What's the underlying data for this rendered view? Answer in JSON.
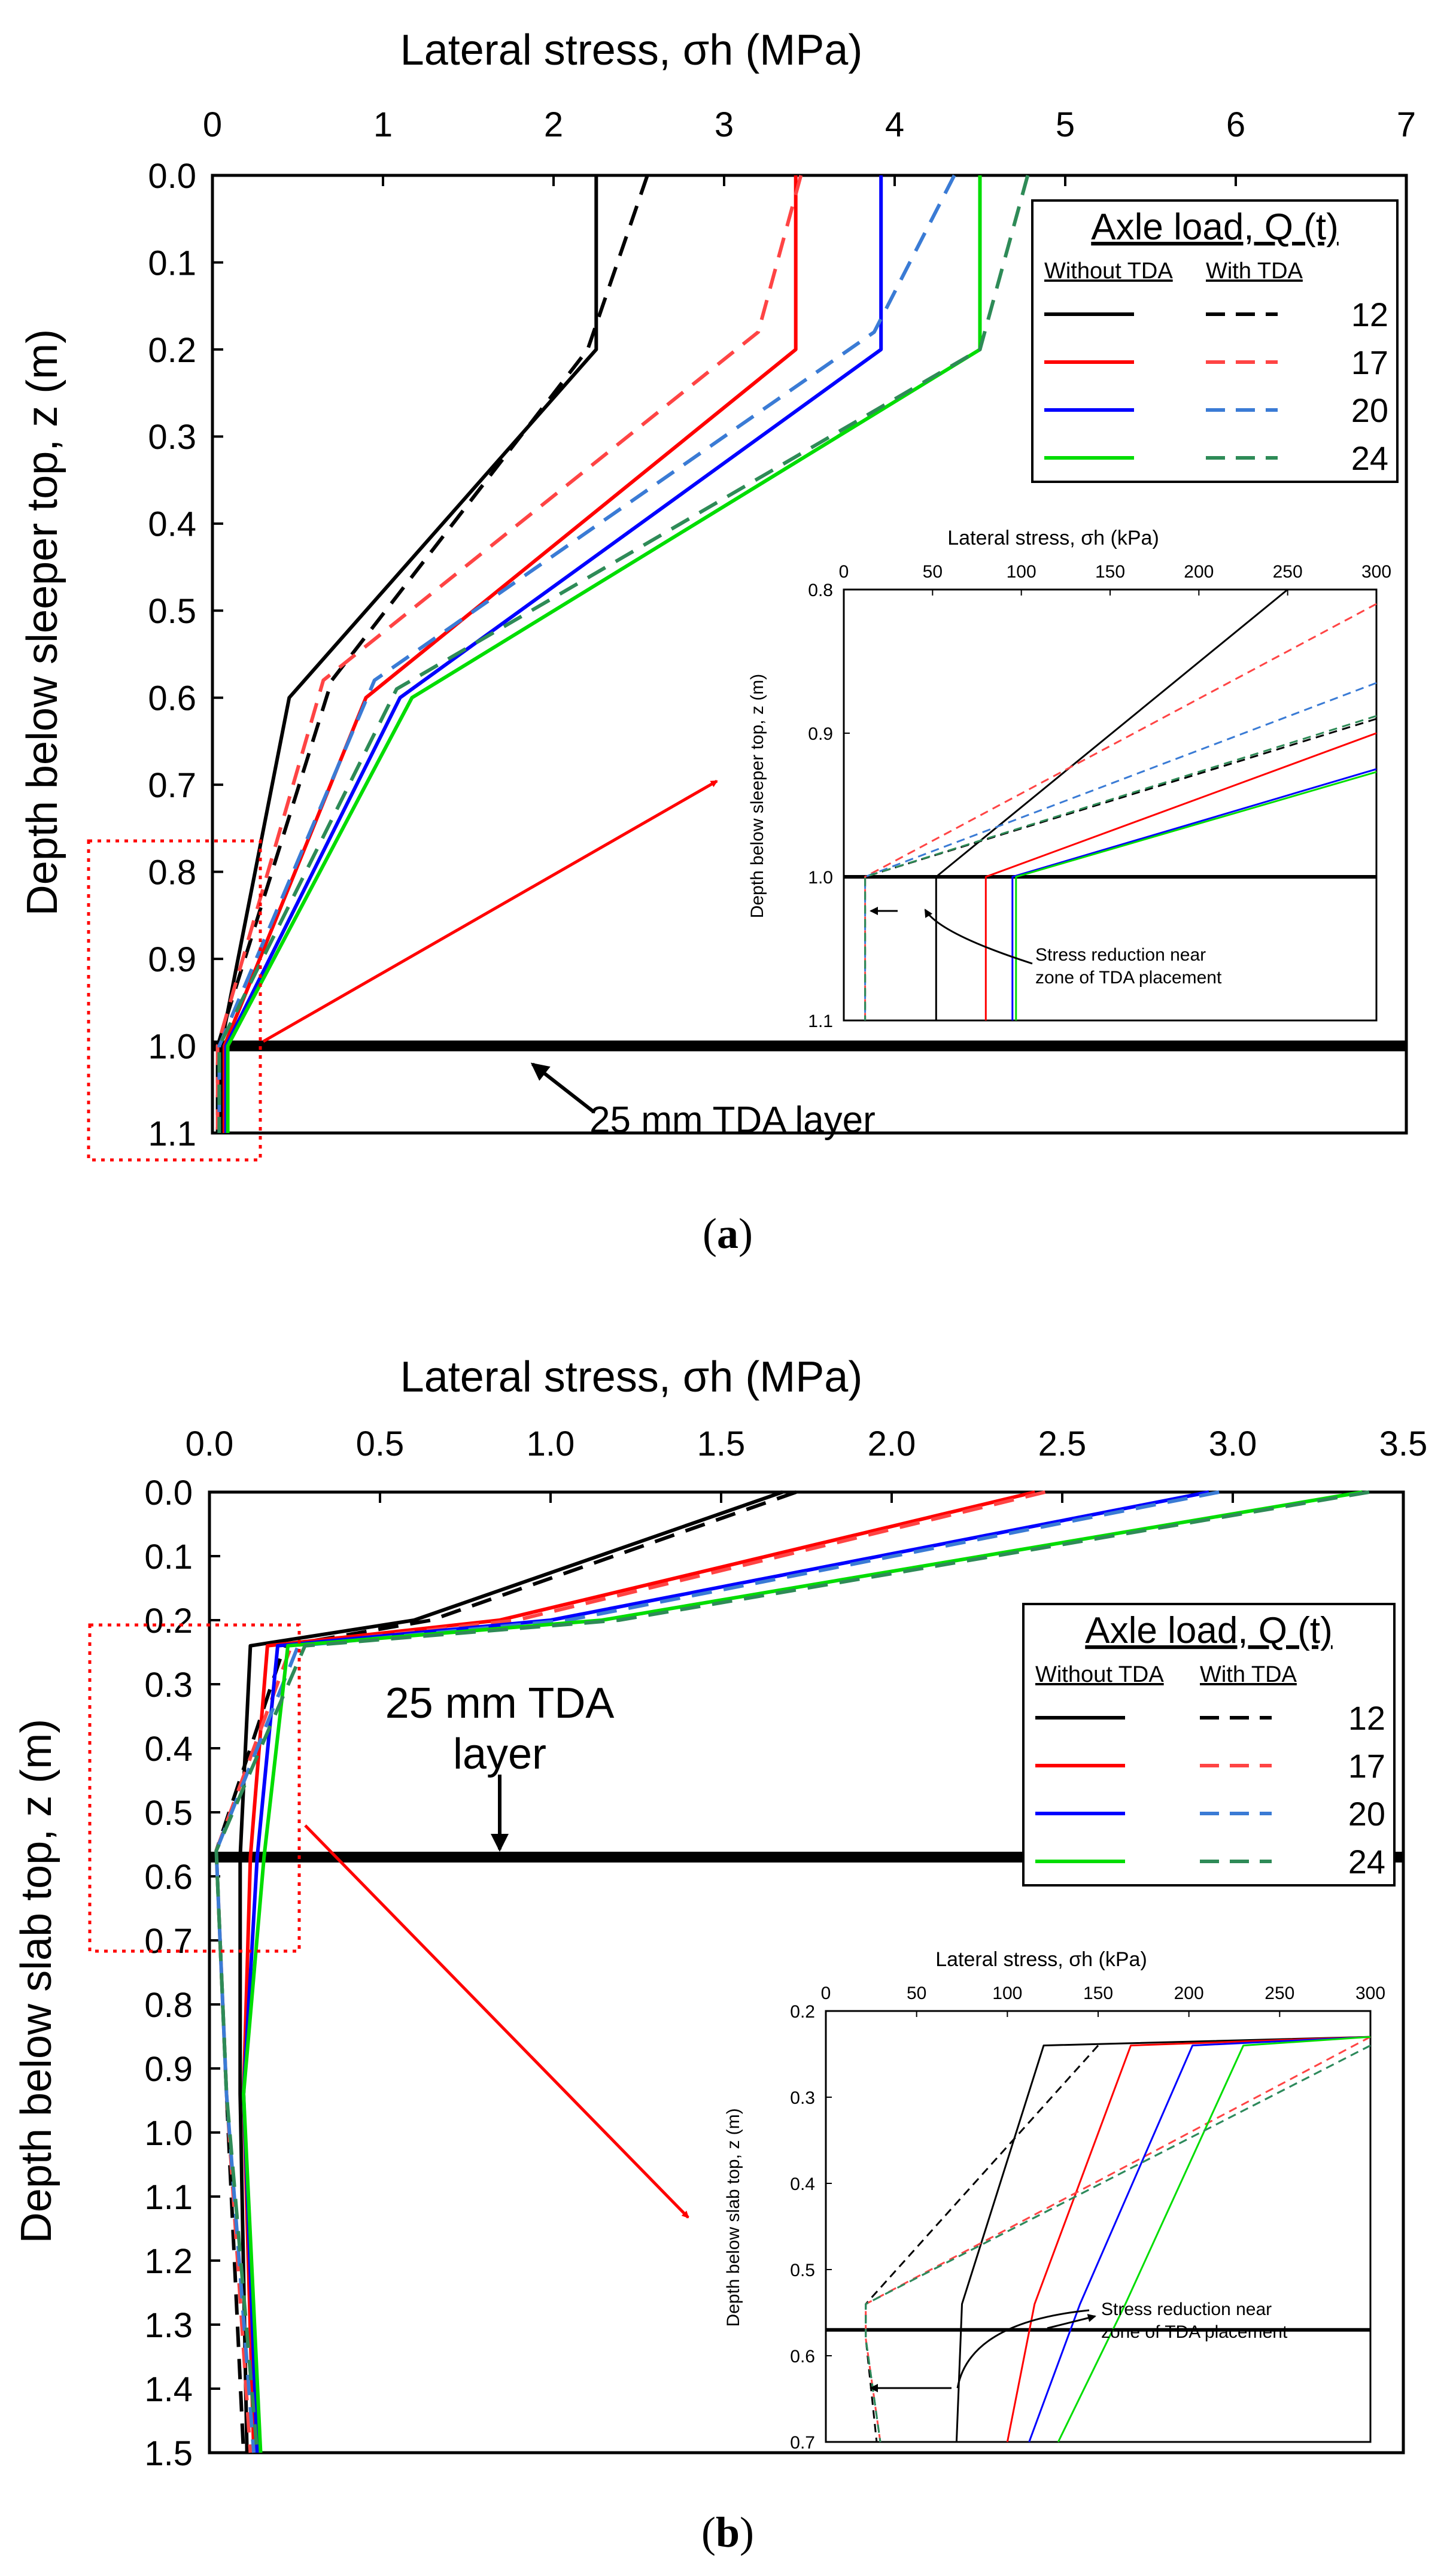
{
  "chart_data": [
    {
      "id": "a",
      "type": "line",
      "caption": "a",
      "title": "Lateral stress, σh (MPa)",
      "xlabel": "Lateral stress, σh (MPa)",
      "ylabel": "Depth below sleeper top, z (m)",
      "xlim": [
        0,
        7
      ],
      "ylim": [
        0,
        1.1
      ],
      "x_ticks": [
        "0",
        "1",
        "2",
        "3",
        "4",
        "5",
        "6",
        "7"
      ],
      "y_ticks": [
        "0.0",
        "0.1",
        "0.2",
        "0.3",
        "0.4",
        "0.5",
        "0.6",
        "0.7",
        "0.8",
        "0.9",
        "1.0",
        "1.1"
      ],
      "legend": {
        "title": "Axle load, Q (t)",
        "col1": "Without TDA",
        "col2": "With TDA",
        "entries": [
          "12",
          "17",
          "20",
          "24"
        ]
      },
      "layer": {
        "label": "25 mm TDA layer",
        "depth": 1.0
      },
      "series": [
        {
          "name": "12",
          "with_tda": false,
          "color": "#000000",
          "x": [
            2.25,
            2.25,
            0.45,
            0.05,
            0.05
          ],
          "y": [
            0,
            0.2,
            0.6,
            1.0,
            1.1
          ]
        },
        {
          "name": "12",
          "with_tda": true,
          "color": "#000000",
          "x": [
            2.55,
            2.2,
            0.7,
            0.03,
            0.03
          ],
          "y": [
            0,
            0.2,
            0.58,
            1.0,
            1.1
          ]
        },
        {
          "name": "17",
          "with_tda": false,
          "color": "#ff0000",
          "x": [
            3.42,
            3.42,
            0.9,
            0.07,
            0.07
          ],
          "y": [
            0,
            0.2,
            0.6,
            1.0,
            1.1
          ]
        },
        {
          "name": "17",
          "with_tda": true,
          "color": "#ff4444",
          "x": [
            3.45,
            3.2,
            0.65,
            0.03,
            0.03
          ],
          "y": [
            0,
            0.18,
            0.58,
            1.0,
            1.1
          ]
        },
        {
          "name": "20",
          "with_tda": false,
          "color": "#0000ff",
          "x": [
            3.92,
            3.92,
            1.1,
            0.08,
            0.08
          ],
          "y": [
            0,
            0.2,
            0.6,
            1.0,
            1.1
          ]
        },
        {
          "name": "20",
          "with_tda": true,
          "color": "#3a7bd5",
          "x": [
            4.35,
            3.88,
            0.95,
            0.04,
            0.04
          ],
          "y": [
            0,
            0.18,
            0.58,
            1.0,
            1.1
          ]
        },
        {
          "name": "24",
          "with_tda": false,
          "color": "#00dd00",
          "x": [
            4.5,
            4.5,
            1.17,
            0.09,
            0.09
          ],
          "y": [
            0,
            0.2,
            0.6,
            1.0,
            1.1
          ]
        },
        {
          "name": "24",
          "with_tda": true,
          "color": "#2e8b57",
          "x": [
            4.78,
            4.5,
            1.08,
            0.04,
            0.04
          ],
          "y": [
            0,
            0.2,
            0.59,
            1.0,
            1.1
          ]
        }
      ],
      "inset": {
        "xlabel": "Lateral stress, σh (kPa)",
        "ylabel": "Depth below sleeper top, z (m)",
        "xlim": [
          0,
          300
        ],
        "ylim": [
          0.8,
          1.1
        ],
        "x_ticks": [
          "0",
          "50",
          "100",
          "150",
          "200",
          "250",
          "300"
        ],
        "y_ticks": [
          "0.8",
          "0.9",
          "1.0",
          "1.1"
        ],
        "annotation": "Stress reduction near zone of TDA placement",
        "annotation_line1": "Stress reduction near",
        "annotation_line2": "zone of TDA placement",
        "layer_depth": 1.0,
        "series": [
          {
            "name": "12",
            "with_tda": false,
            "color": "#000000",
            "x": [
              250,
              52,
              52
            ],
            "y": [
              0.8,
              1.0,
              1.1
            ]
          },
          {
            "name": "12",
            "with_tda": true,
            "color": "#000000",
            "x": [
              300,
              12,
              12
            ],
            "y": [
              0.89,
              1.0,
              1.1
            ]
          },
          {
            "name": "17",
            "with_tda": false,
            "color": "#ff0000",
            "x": [
              300,
              80,
              80
            ],
            "y": [
              0.9,
              1.0,
              1.1
            ]
          },
          {
            "name": "17",
            "with_tda": true,
            "color": "#ff4444",
            "x": [
              300,
              12,
              12
            ],
            "y": [
              0.81,
              1.0,
              1.1
            ]
          },
          {
            "name": "20",
            "with_tda": false,
            "color": "#0000ff",
            "x": [
              300,
              95,
              95
            ],
            "y": [
              0.925,
              1.0,
              1.1
            ]
          },
          {
            "name": "20",
            "with_tda": true,
            "color": "#3a7bd5",
            "x": [
              300,
              12,
              12
            ],
            "y": [
              0.865,
              1.0,
              1.1
            ]
          },
          {
            "name": "24",
            "with_tda": false,
            "color": "#00dd00",
            "x": [
              300,
              97,
              97
            ],
            "y": [
              0.927,
              1.0,
              1.1
            ]
          },
          {
            "name": "24",
            "with_tda": true,
            "color": "#2e8b57",
            "x": [
              300,
              12,
              12
            ],
            "y": [
              0.888,
              1.0,
              1.1
            ]
          }
        ]
      }
    },
    {
      "id": "b",
      "type": "line",
      "caption": "b",
      "title": "Lateral stress, σh (MPa)",
      "xlabel": "Lateral stress, σh (MPa)",
      "ylabel": "Depth below slab top, z (m)",
      "xlim": [
        0,
        3.5
      ],
      "ylim": [
        0,
        1.5
      ],
      "x_ticks": [
        "0.0",
        "0.5",
        "1.0",
        "1.5",
        "2.0",
        "2.5",
        "3.0",
        "3.5"
      ],
      "y_ticks": [
        "0.0",
        "0.1",
        "0.2",
        "0.3",
        "0.4",
        "0.5",
        "0.6",
        "0.7",
        "0.8",
        "0.9",
        "1.0",
        "1.1",
        "1.2",
        "1.3",
        "1.4",
        "1.5"
      ],
      "legend": {
        "title": "Axle load, Q (t)",
        "col1": "Without TDA",
        "col2": "With TDA",
        "entries": [
          "12",
          "17",
          "20",
          "24"
        ]
      },
      "layer": {
        "label_line1": "25 mm TDA",
        "label_line2": "layer",
        "depth": 0.57
      },
      "series": [
        {
          "name": "12",
          "with_tda": false,
          "color": "#000000",
          "x": [
            1.68,
            0.6,
            0.12,
            0.09,
            0.09,
            0.11
          ],
          "y": [
            0,
            0.2,
            0.24,
            0.57,
            0.94,
            1.5
          ]
        },
        {
          "name": "12",
          "with_tda": true,
          "color": "#000000",
          "x": [
            1.72,
            0.65,
            0.22,
            0.02,
            0.05,
            0.1
          ],
          "y": [
            0,
            0.2,
            0.24,
            0.56,
            0.94,
            1.5
          ]
        },
        {
          "name": "17",
          "with_tda": false,
          "color": "#ff0000",
          "x": [
            2.42,
            0.85,
            0.17,
            0.12,
            0.1,
            0.13
          ],
          "y": [
            0,
            0.2,
            0.24,
            0.57,
            0.94,
            1.5
          ]
        },
        {
          "name": "17",
          "with_tda": true,
          "color": "#ff4444",
          "x": [
            2.45,
            0.9,
            0.24,
            0.02,
            0.05,
            0.12
          ],
          "y": [
            0,
            0.2,
            0.24,
            0.56,
            0.94,
            1.5
          ]
        },
        {
          "name": "20",
          "with_tda": false,
          "color": "#0000ff",
          "x": [
            2.93,
            1.0,
            0.2,
            0.14,
            0.1,
            0.14
          ],
          "y": [
            0,
            0.2,
            0.24,
            0.57,
            0.94,
            1.5
          ]
        },
        {
          "name": "20",
          "with_tda": true,
          "color": "#3a7bd5",
          "x": [
            2.96,
            1.05,
            0.26,
            0.02,
            0.05,
            0.13
          ],
          "y": [
            0,
            0.2,
            0.24,
            0.56,
            0.94,
            1.5
          ]
        },
        {
          "name": "24",
          "with_tda": false,
          "color": "#00dd00",
          "x": [
            3.38,
            1.15,
            0.23,
            0.16,
            0.1,
            0.15
          ],
          "y": [
            0,
            0.2,
            0.24,
            0.57,
            0.94,
            1.5
          ]
        },
        {
          "name": "24",
          "with_tda": true,
          "color": "#2e8b57",
          "x": [
            3.4,
            1.2,
            0.28,
            0.02,
            0.05,
            0.14
          ],
          "y": [
            0,
            0.2,
            0.24,
            0.56,
            0.94,
            1.5
          ]
        }
      ],
      "inset": {
        "xlabel": "Lateral stress, σh (kPa)",
        "ylabel": "Depth below slab top, z (m)",
        "xlim": [
          0,
          300
        ],
        "ylim": [
          0.2,
          0.7
        ],
        "x_ticks": [
          "0",
          "50",
          "100",
          "150",
          "200",
          "250",
          "300"
        ],
        "y_ticks": [
          "0.2",
          "0.3",
          "0.4",
          "0.5",
          "0.6",
          "0.7"
        ],
        "annotation": "Stress reduction near zone of TDA placement",
        "annotation_line1": "Stress reduction near",
        "annotation_line2": "zone of TDA placement",
        "layer_depth": 0.57,
        "series": [
          {
            "name": "12",
            "with_tda": false,
            "color": "#000000",
            "x": [
              300,
              120,
              75,
              72
            ],
            "y": [
              0.23,
              0.24,
              0.54,
              0.7
            ]
          },
          {
            "name": "12",
            "with_tda": true,
            "color": "#000000",
            "x": [
              150,
              22,
              22,
              28
            ],
            "y": [
              0.24,
              0.54,
              0.58,
              0.7
            ]
          },
          {
            "name": "17",
            "with_tda": false,
            "color": "#ff0000",
            "x": [
              300,
              168,
              115,
              100
            ],
            "y": [
              0.23,
              0.24,
              0.54,
              0.7
            ]
          },
          {
            "name": "17",
            "with_tda": true,
            "color": "#ff4444",
            "x": [
              300,
              22,
              22,
              30
            ],
            "y": [
              0.23,
              0.54,
              0.58,
              0.7
            ]
          },
          {
            "name": "20",
            "with_tda": false,
            "color": "#0000ff",
            "x": [
              300,
              202,
              140,
              112
            ],
            "y": [
              0.23,
              0.24,
              0.54,
              0.7
            ]
          },
          {
            "name": "20",
            "with_tda": true,
            "color": "#3a7bd5",
            "x": [
              300,
              22,
              22,
              30
            ],
            "y": [
              0.24,
              0.54,
              0.58,
              0.7
            ]
          },
          {
            "name": "24",
            "with_tda": false,
            "color": "#00dd00",
            "x": [
              300,
              230,
              165,
              128
            ],
            "y": [
              0.23,
              0.24,
              0.54,
              0.7
            ]
          },
          {
            "name": "24",
            "with_tda": true,
            "color": "#2e8b57",
            "x": [
              300,
              22,
              22,
              30
            ],
            "y": [
              0.24,
              0.54,
              0.58,
              0.7
            ]
          }
        ]
      }
    }
  ]
}
